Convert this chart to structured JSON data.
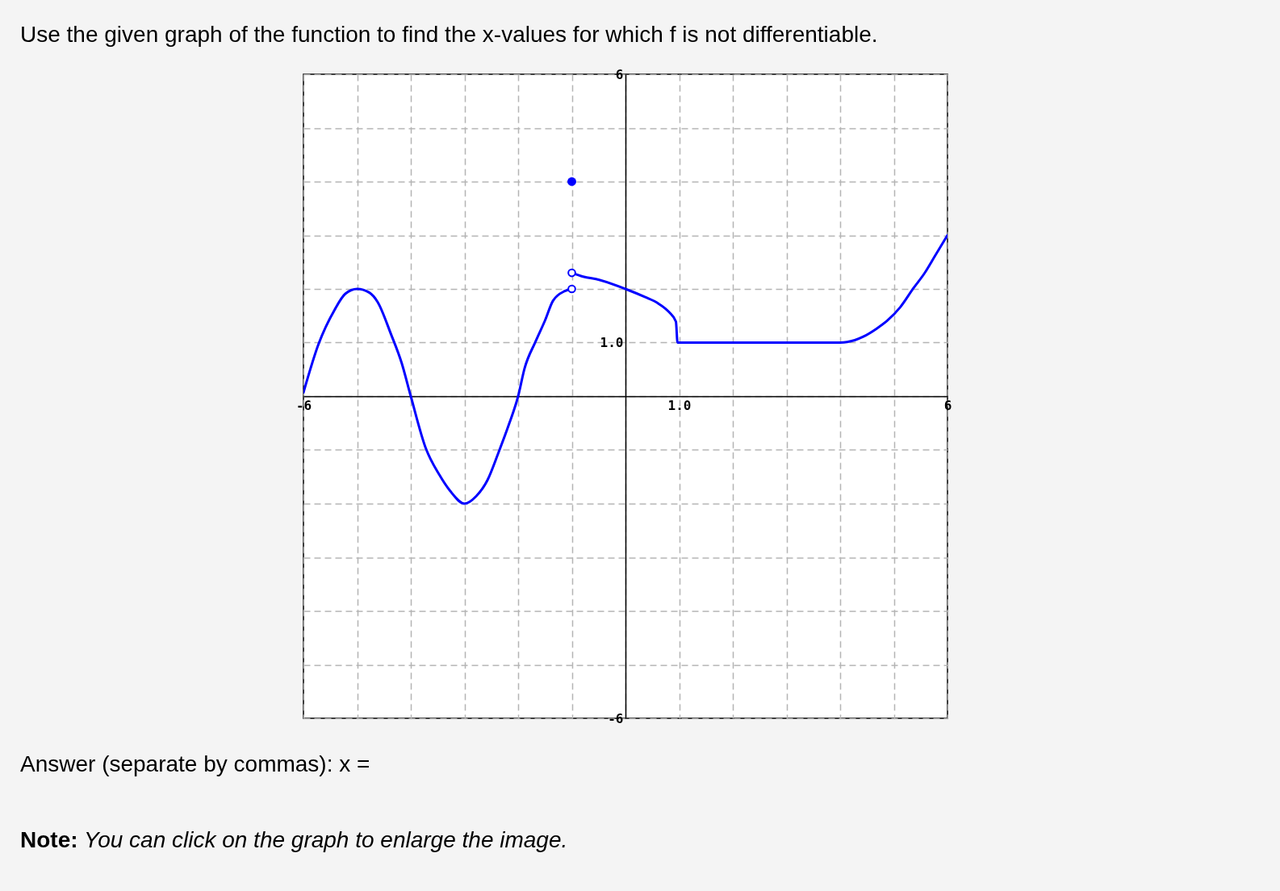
{
  "chart_data": {
    "type": "line",
    "title": "Use the given graph of the function to find the x-values for which f is not differentiable.",
    "annotations": [
      "Answer (separate by commas): x =",
      "Note:",
      "You can click on the graph to enlarge the image."
    ],
    "xlim": [
      -6,
      6
    ],
    "ylim": [
      -6,
      6
    ],
    "xticks": [
      -6,
      {
        "value": -5,
        "label": null
      },
      {
        "value": -4,
        "label": null
      },
      {
        "value": -3,
        "label": null
      },
      {
        "value": -2,
        "label": null
      },
      {
        "value": -1,
        "label": null
      },
      {
        "value": 0,
        "label": null
      },
      {
        "value": 1,
        "label": "1.0"
      },
      {
        "value": 2,
        "label": null
      },
      {
        "value": 3,
        "label": null
      },
      {
        "value": 4,
        "label": null
      },
      {
        "value": 5,
        "label": null
      },
      6
    ],
    "yticks": [
      -6,
      {
        "value": -5,
        "label": null
      },
      {
        "value": -4,
        "label": null
      },
      {
        "value": -3,
        "label": null
      },
      {
        "value": -2,
        "label": null
      },
      {
        "value": -1,
        "label": null
      },
      {
        "value": 0,
        "label": null
      },
      {
        "value": 1,
        "label": "1.0"
      },
      {
        "value": 2,
        "label": null
      },
      {
        "value": 3,
        "label": null
      },
      {
        "value": 4,
        "label": null
      },
      {
        "value": 5,
        "label": null
      },
      6
    ],
    "grid": true,
    "series": [
      {
        "type": "line",
        "color": "#0000ff",
        "x": [
          -6,
          -5.72,
          -5.42,
          -5.22,
          -5,
          -4.77,
          -4.62,
          -4.37,
          -4.17,
          -4,
          -3.72,
          -3.47,
          -3.27,
          -3,
          -2.78,
          -2.57,
          -2.37,
          -2.17,
          -2,
          -1.88,
          -1.68,
          -1.5,
          -1.35,
          -1.13,
          -1
        ],
        "values": [
          0.07,
          0.97,
          1.61,
          1.91,
          2,
          1.93,
          1.76,
          1.16,
          0.62,
          0,
          -0.97,
          -1.46,
          -1.76,
          -2,
          -1.86,
          -1.56,
          -1.06,
          -0.52,
          0,
          0.52,
          1.01,
          1.41,
          1.78,
          1.96,
          2
        ]
      },
      {
        "type": "line",
        "color": "#0000ff",
        "x": [
          -1,
          -0.79,
          -0.49,
          0,
          0.36,
          0.61,
          0.81,
          0.94,
          0.97,
          1,
          4,
          4.13,
          4.43,
          4.68,
          4.88,
          5.12,
          5.37,
          5.57,
          5.77,
          6
        ],
        "values": [
          2.3,
          2.23,
          2.17,
          2,
          1.85,
          1.73,
          1.57,
          1.39,
          1,
          1,
          1,
          1.01,
          1.11,
          1.26,
          1.41,
          1.66,
          2.02,
          2.29,
          2.62,
          3
        ]
      },
      {
        "type": "scatter",
        "color": "#0000ff",
        "marker": "circle",
        "x": [
          -1
        ],
        "values": [
          4
        ]
      },
      {
        "type": "scatter",
        "color": "#0000ff",
        "colors": [
          "#ffffff",
          "#ffffff"
        ],
        "marker": "circle",
        "x": [
          -1,
          -1
        ],
        "values": [
          2.3,
          2
        ]
      }
    ]
  }
}
